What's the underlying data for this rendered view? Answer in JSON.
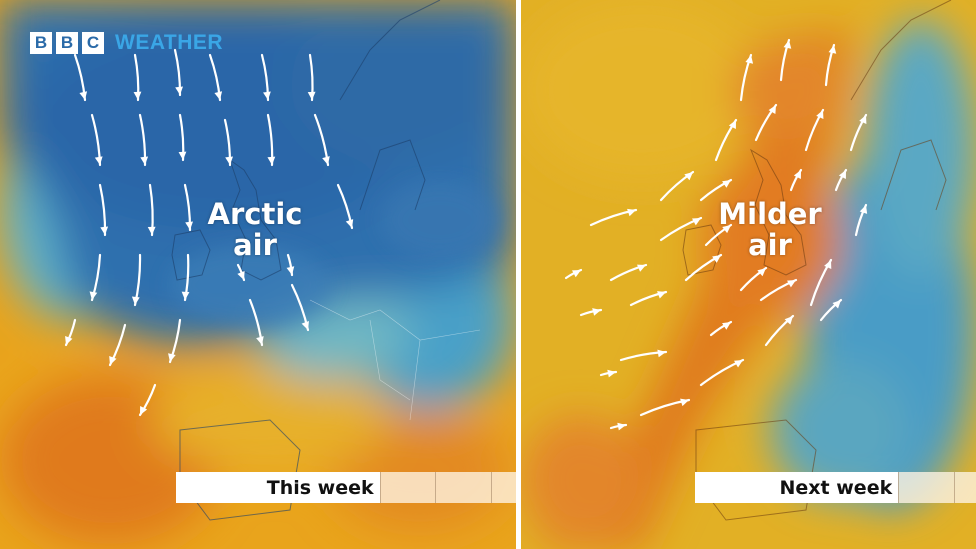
{
  "logo": {
    "letters": [
      "B",
      "B",
      "C"
    ],
    "product": "WEATHER"
  },
  "panels": [
    {
      "label": "Arctic air",
      "label_lines": [
        "Arctic",
        "air"
      ],
      "timeline": "This week",
      "arrow_direction": "south"
    },
    {
      "label": "Milder air",
      "label_lines": [
        "Milder",
        "air"
      ],
      "timeline": "Next week",
      "arrow_direction": "northeast"
    }
  ],
  "colors": {
    "cold": "#2f6fae",
    "cool": "#4aa3c9",
    "mild": "#e8b320",
    "warm": "#e07a1e",
    "text": "#ffffff"
  }
}
